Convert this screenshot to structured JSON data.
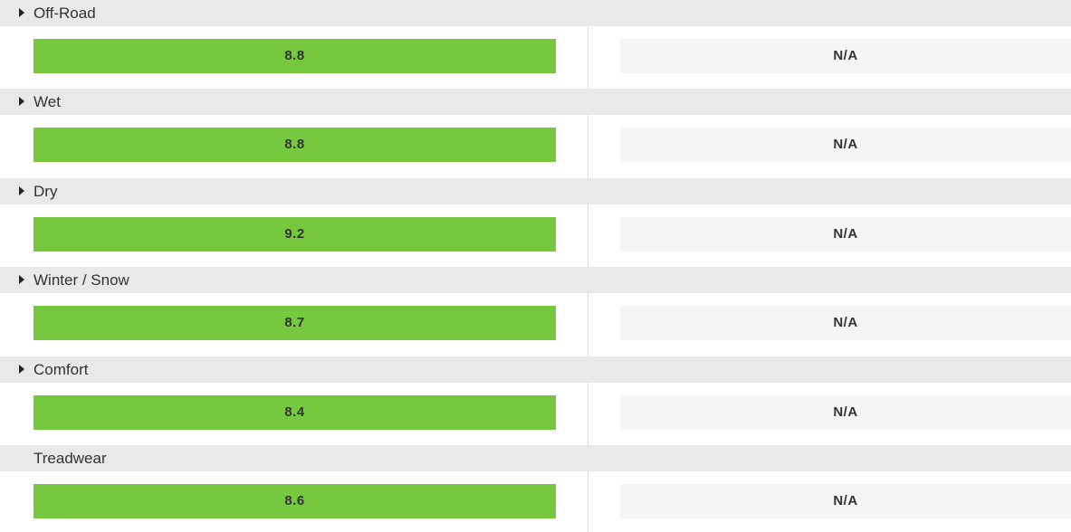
{
  "sections": [
    {
      "label": "Off-Road",
      "expandable": true,
      "score": "8.8",
      "comparison": "N/A"
    },
    {
      "label": "Wet",
      "expandable": true,
      "score": "8.8",
      "comparison": "N/A"
    },
    {
      "label": "Dry",
      "expandable": true,
      "score": "9.2",
      "comparison": "N/A"
    },
    {
      "label": "Winter / Snow",
      "expandable": true,
      "score": "8.7",
      "comparison": "N/A"
    },
    {
      "label": "Comfort",
      "expandable": true,
      "score": "8.4",
      "comparison": "N/A"
    },
    {
      "label": "Treadwear",
      "expandable": false,
      "score": "8.6",
      "comparison": "N/A"
    }
  ]
}
